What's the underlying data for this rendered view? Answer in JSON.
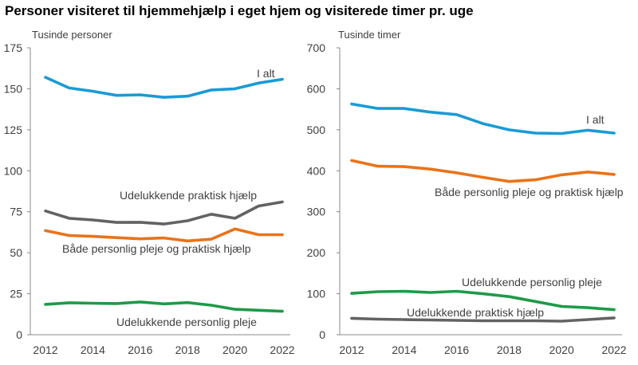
{
  "title": "Personer visiteret til hjemmehjælp i eget hjem og visiterede timer pr. uge",
  "colors": {
    "blue": "#1a9ad6",
    "orange": "#e8731a",
    "gray": "#636363",
    "green": "#1f9a48",
    "axis": "#888888",
    "text": "#404040"
  },
  "chart_data": [
    {
      "type": "line",
      "ylabel": "Tusinde personer",
      "ylim": [
        0,
        175
      ],
      "yticks": [
        0,
        25,
        50,
        75,
        100,
        125,
        150,
        175
      ],
      "x": [
        2012,
        2013,
        2014,
        2015,
        2016,
        2017,
        2018,
        2019,
        2020,
        2021,
        2022
      ],
      "xticks": [
        2012,
        2014,
        2016,
        2018,
        2020,
        2022
      ],
      "grid": false,
      "series": [
        {
          "name": "I alt",
          "color": "blue",
          "values": [
            157,
            150.5,
            148.5,
            146,
            146.3,
            144.8,
            145.5,
            149.3,
            150,
            153.5,
            155.8
          ]
        },
        {
          "name": "Udelukkende praktisk hjælp",
          "color": "gray",
          "values": [
            75.5,
            71,
            70,
            68.5,
            68.6,
            67.5,
            69.5,
            73.5,
            71,
            78.5,
            81
          ]
        },
        {
          "name": "Både personlig pleje og praktisk hjælp",
          "color": "orange",
          "values": [
            63.5,
            60.5,
            60,
            59.2,
            58.5,
            59,
            57.2,
            58.3,
            64.5,
            61,
            61
          ]
        },
        {
          "name": "Udelukkende personlig pleje",
          "color": "green",
          "values": [
            18.5,
            19.5,
            19.2,
            19,
            20,
            18.8,
            19.6,
            18,
            15.5,
            14.9,
            14.3
          ]
        }
      ]
    },
    {
      "type": "line",
      "ylabel": "Tusinde timer",
      "ylim": [
        0,
        700
      ],
      "yticks": [
        0,
        100,
        200,
        300,
        400,
        500,
        600,
        700
      ],
      "x": [
        2012,
        2013,
        2014,
        2015,
        2016,
        2017,
        2018,
        2019,
        2020,
        2021,
        2022
      ],
      "xticks": [
        2012,
        2014,
        2016,
        2018,
        2020,
        2022
      ],
      "grid": false,
      "series": [
        {
          "name": "I alt",
          "color": "blue",
          "values": [
            563,
            552,
            552,
            543,
            537,
            515,
            500,
            492,
            491,
            499,
            492
          ]
        },
        {
          "name": "Både personlig pleje og praktisk hjælp",
          "color": "orange",
          "values": [
            425,
            411,
            410,
            404,
            395,
            384,
            374,
            378,
            390,
            397,
            391
          ]
        },
        {
          "name": "Udelukkende personlig pleje",
          "color": "green",
          "values": [
            101,
            105,
            106,
            103,
            106,
            100,
            93,
            81,
            69,
            66,
            61
          ]
        },
        {
          "name": "Udelukkende praktisk hjælp",
          "color": "gray",
          "values": [
            40,
            38,
            37,
            36,
            35,
            34,
            34,
            34,
            33,
            37,
            41
          ]
        }
      ]
    }
  ]
}
